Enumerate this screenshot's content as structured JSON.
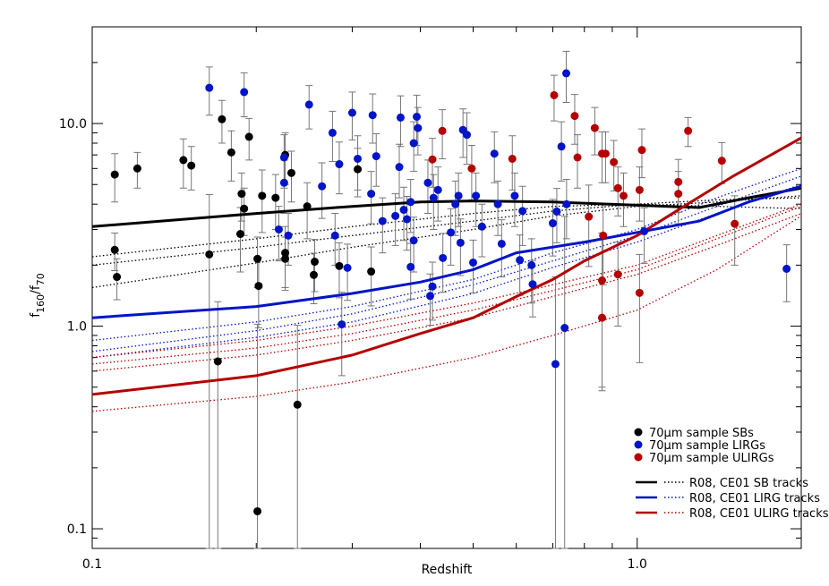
{
  "chart_data": {
    "type": "scatter",
    "xlabel": "Redshift",
    "ylabel": [
      "f",
      "160",
      "/f",
      "70"
    ],
    "log_x": true,
    "log_y": true,
    "xlim": [
      0.1,
      2
    ],
    "ylim": [
      0.08,
      30
    ],
    "xticks": [
      0.1,
      {
        "value": 1,
        "label": "1.0"
      }
    ],
    "yticks": [
      0.1,
      {
        "value": 1,
        "label": "1.0"
      },
      {
        "value": 10,
        "label": "10.0"
      }
    ],
    "xminor": [
      0.2,
      0.3,
      0.4,
      0.5,
      0.6,
      0.7,
      0.8,
      0.9,
      2
    ],
    "yminor": [
      0.08,
      0.09,
      0.2,
      0.3,
      0.4,
      0.5,
      0.6,
      0.7,
      0.8,
      0.9,
      2,
      3,
      4,
      5,
      6,
      7,
      8,
      9,
      20,
      30
    ],
    "legend": "lower right",
    "series": [
      {
        "name": "70μm sample SBs",
        "color": "#000000",
        "x": [
          0.11,
          0.11,
          0.111,
          0.121,
          0.147,
          0.152,
          0.173,
          0.18,
          0.164,
          0.17,
          0.188,
          0.19,
          0.187,
          0.194,
          0.201,
          0.201,
          0.202,
          0.205,
          0.217,
          0.226,
          0.226,
          0.226,
          0.232,
          0.238,
          0.248,
          0.256,
          0.255,
          0.284,
          0.307,
          0.325
        ],
        "values": [
          5.6,
          2.38,
          1.75,
          6.0,
          6.6,
          6.2,
          10.5,
          7.2,
          2.26,
          0.67,
          4.5,
          3.8,
          2.85,
          8.6,
          2.15,
          0.122,
          1.58,
          4.4,
          4.3,
          7.0,
          2.3,
          2.15,
          5.7,
          0.41,
          3.9,
          2.08,
          1.79,
          1.98,
          5.95,
          1.86
        ],
        "errors": [
          1.5,
          0.5,
          0.4,
          1.2,
          1.8,
          1.5,
          2.5,
          2.0,
          2.2,
          0.65,
          1.2,
          1.0,
          1.0,
          2.0,
          0.6,
          0.9,
          0.6,
          1.5,
          1.3,
          2.0,
          0.8,
          0.6,
          1.6,
          0.6,
          1.2,
          0.6,
          0.5,
          0.6,
          1.6,
          0.6
        ]
      },
      {
        "name": "70μm sample LIRGs",
        "color": "#0014c8",
        "x": [
          0.164,
          0.19,
          0.225,
          0.225,
          0.22,
          0.229,
          0.25,
          0.264,
          0.279,
          0.276,
          0.284,
          0.3,
          0.307,
          0.327,
          0.332,
          0.294,
          0.325,
          0.341,
          0.366,
          0.368,
          0.373,
          0.378,
          0.36,
          0.396,
          0.394,
          0.389,
          0.384,
          0.389,
          0.413,
          0.423,
          0.431,
          0.384,
          0.421,
          0.417,
          0.44,
          0.464,
          0.455,
          0.47,
          0.479,
          0.487,
          0.474,
          0.506,
          0.5,
          0.519,
          0.547,
          0.555,
          0.564,
          0.596,
          0.609,
          0.616,
          0.64,
          0.643,
          0.7,
          0.712,
          0.726,
          0.741,
          0.742,
          0.736,
          0.708,
          0.287,
          1.88,
          1.03
        ],
        "values": [
          15.0,
          14.3,
          6.8,
          5.1,
          3.0,
          2.8,
          12.4,
          4.9,
          2.8,
          9.0,
          6.3,
          11.3,
          6.7,
          11.0,
          6.9,
          1.94,
          4.5,
          3.3,
          6.1,
          10.7,
          3.75,
          3.37,
          3.5,
          9.5,
          10.8,
          8.0,
          4.1,
          2.65,
          5.1,
          4.3,
          4.7,
          1.96,
          1.57,
          1.41,
          2.17,
          4.0,
          2.9,
          4.4,
          9.3,
          8.8,
          2.58,
          4.4,
          2.06,
          3.1,
          7.1,
          4.0,
          2.55,
          4.4,
          2.12,
          3.7,
          2.0,
          1.61,
          3.22,
          3.68,
          7.7,
          17.7,
          4.0,
          0.98,
          0.65,
          1.02,
          1.92,
          2.94
        ],
        "errors": [
          4,
          3.5,
          2,
          1.5,
          0.9,
          0.8,
          3,
          1.5,
          0.8,
          2.5,
          1.8,
          3,
          2,
          3,
          2,
          0.6,
          1.3,
          1,
          1.8,
          3,
          1.1,
          1,
          1,
          2.5,
          3,
          2.2,
          1.2,
          0.8,
          1.5,
          1.3,
          1.4,
          0.6,
          0.5,
          0.4,
          0.7,
          1.2,
          0.9,
          1.3,
          2.5,
          2.5,
          0.8,
          1.3,
          0.6,
          0.9,
          2,
          1.2,
          0.8,
          1.3,
          0.7,
          1.2,
          0.7,
          0.5,
          1,
          1.1,
          2.5,
          5,
          1.3,
          2.5,
          1.1,
          0.45,
          0.6,
          0.9
        ]
      },
      {
        "name": "70μm sample ULIRGs",
        "color": "#b40000",
        "x": [
          0.421,
          0.439,
          0.497,
          0.59,
          0.704,
          0.768,
          0.777,
          0.815,
          0.836,
          0.862,
          0.875,
          0.866,
          0.862,
          0.862,
          0.906,
          0.922,
          0.944,
          1.01,
          1.02,
          1.01,
          0.922,
          1.24,
          1.19,
          1.19,
          1.43,
          1.51
        ],
        "values": [
          6.65,
          9.2,
          6.0,
          6.7,
          13.8,
          10.9,
          6.8,
          3.47,
          9.5,
          7.1,
          7.1,
          2.8,
          1.68,
          1.1,
          6.45,
          4.8,
          4.4,
          4.7,
          7.4,
          1.46,
          1.8,
          9.2,
          5.15,
          4.5,
          6.55,
          3.2
        ],
        "errors": [
          1.8,
          2.5,
          1.8,
          2,
          3.5,
          3,
          2,
          1.5,
          2.5,
          2,
          2,
          1.2,
          1.2,
          0.6,
          1.8,
          1.3,
          1.3,
          1.4,
          2,
          0.8,
          0.8,
          1.5,
          1.5,
          1.3,
          1.5,
          1.2
        ]
      }
    ],
    "track_x": [
      0.1,
      0.2,
      0.3,
      0.5,
      0.7,
      1.0,
      1.4,
      2.0
    ],
    "tracks": [
      {
        "name": "R08, CE01 SB tracks",
        "color": "#000000",
        "x": [
          0.1,
          0.2,
          0.3,
          0.4,
          0.5,
          0.7,
          1.0,
          1.3,
          1.6,
          2.0
        ],
        "values": [
          3.1,
          3.6,
          3.9,
          4.1,
          4.15,
          4.1,
          3.95,
          3.85,
          4.3,
          4.8
        ],
        "dotted": [
          [
            2.0,
            2.45,
            2.8,
            3.3,
            3.7,
            4.0,
            4.2,
            4.3
          ],
          [
            1.55,
            2.05,
            2.45,
            3.0,
            3.5,
            3.9,
            4.1,
            4.4
          ],
          [
            2.2,
            2.7,
            3.1,
            3.6,
            3.9,
            4.0,
            3.9,
            3.8
          ]
        ]
      },
      {
        "name": "R08, CE01 LIRG tracks",
        "color": "#0014c8",
        "x": [
          0.1,
          0.2,
          0.3,
          0.4,
          0.5,
          0.6,
          0.8,
          1.0,
          1.3,
          1.6,
          2.0
        ],
        "values": [
          1.1,
          1.25,
          1.45,
          1.65,
          1.9,
          2.3,
          2.6,
          2.9,
          3.3,
          4.1,
          4.9
        ],
        "dotted": [
          [
            0.75,
            0.95,
            1.15,
            1.6,
            2.1,
            2.8,
            3.9,
            5.5
          ],
          [
            0.85,
            1.05,
            1.25,
            1.7,
            2.3,
            3.0,
            4.3,
            6.0
          ],
          [
            0.7,
            0.88,
            1.05,
            1.45,
            1.95,
            2.6,
            3.6,
            5.0
          ]
        ]
      },
      {
        "name": "R08, CE01 ULIRG tracks",
        "color": "#b40000",
        "x": [
          0.1,
          0.2,
          0.3,
          0.4,
          0.5,
          0.6,
          0.7,
          0.8,
          1.0,
          1.2,
          1.5,
          2.0
        ],
        "values": [
          0.46,
          0.57,
          0.72,
          0.92,
          1.1,
          1.4,
          1.7,
          2.1,
          2.8,
          3.8,
          5.5,
          8.5
        ],
        "dotted": [
          [
            0.6,
            0.72,
            0.85,
            1.1,
            1.4,
            1.8,
            2.5,
            3.6
          ],
          [
            0.65,
            0.78,
            0.92,
            1.2,
            1.5,
            1.9,
            2.7,
            3.9
          ],
          [
            0.7,
            0.85,
            1.0,
            1.3,
            1.6,
            2.0,
            2.8,
            4.0
          ],
          [
            0.38,
            0.45,
            0.53,
            0.7,
            0.9,
            1.2,
            1.9,
            3.5
          ]
        ]
      }
    ]
  }
}
